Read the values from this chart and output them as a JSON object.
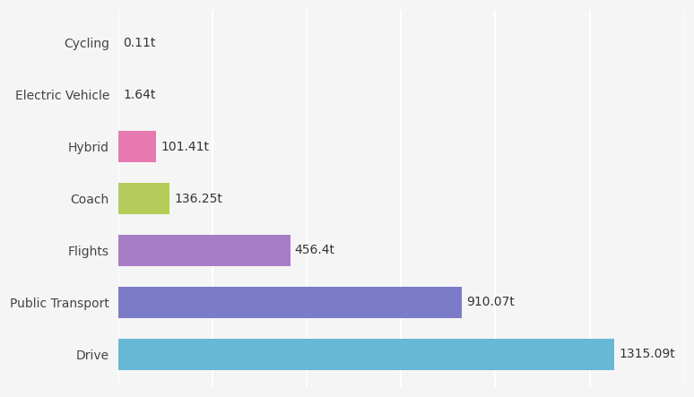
{
  "categories": [
    "Drive",
    "Public Transport",
    "Flights",
    "Coach",
    "Hybrid",
    "Electric Vehicle",
    "Cycling"
  ],
  "values": [
    1315.09,
    910.07,
    456.4,
    136.25,
    101.41,
    1.64,
    0.11
  ],
  "labels": [
    "1315.09t",
    "910.07t",
    "456.4t",
    "136.25t",
    "101.41t",
    "1.64t",
    "0.11t"
  ],
  "bar_colors": [
    "#65b8d6",
    "#7b7bc8",
    "#a87dc8",
    "#b5cc5a",
    "#e879b0",
    "#e8507a",
    "#e8507a"
  ],
  "background_color": "#f5f5f5",
  "grid_color": "#ffffff",
  "label_fontsize": 10,
  "tick_fontsize": 10,
  "xlim": [
    0,
    1500
  ]
}
